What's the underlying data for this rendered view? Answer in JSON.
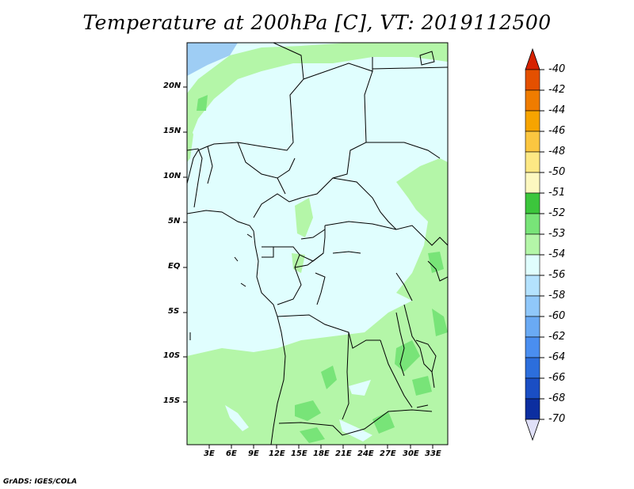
{
  "title": "Temperature at 200hPa [C], VT: 2019112500",
  "credit": "GrADS: IGES/COLA",
  "map": {
    "lat_labels": [
      "20N",
      "15N",
      "10N",
      "5N",
      "EQ",
      "5S",
      "10S",
      "15S"
    ],
    "lon_labels": [
      "3E",
      "6E",
      "9E",
      "12E",
      "15E",
      "18E",
      "21E",
      "24E",
      "27E",
      "30E",
      "33E"
    ],
    "lat_range": [
      -20,
      25
    ],
    "lon_range": [
      0,
      35
    ]
  },
  "colorbar": {
    "labels": [
      "-40",
      "-42",
      "-44",
      "-46",
      "-48",
      "-50",
      "-51",
      "-52",
      "-53",
      "-54",
      "-56",
      "-58",
      "-60",
      "-62",
      "-64",
      "-66",
      "-68",
      "-70"
    ],
    "colors": [
      "#d62200",
      "#e45000",
      "#ef7c00",
      "#f7a400",
      "#fbc640",
      "#fde884",
      "#fdf8c0",
      "#3cc63c",
      "#78e478",
      "#b4f6a8",
      "#e0fefe",
      "#b4e2fe",
      "#90c8fa",
      "#6aaaf4",
      "#4a8ef0",
      "#2c6edc",
      "#1a4ec4",
      "#0c2ea0",
      "#0a1878",
      "#e0e0f8"
    ]
  }
}
